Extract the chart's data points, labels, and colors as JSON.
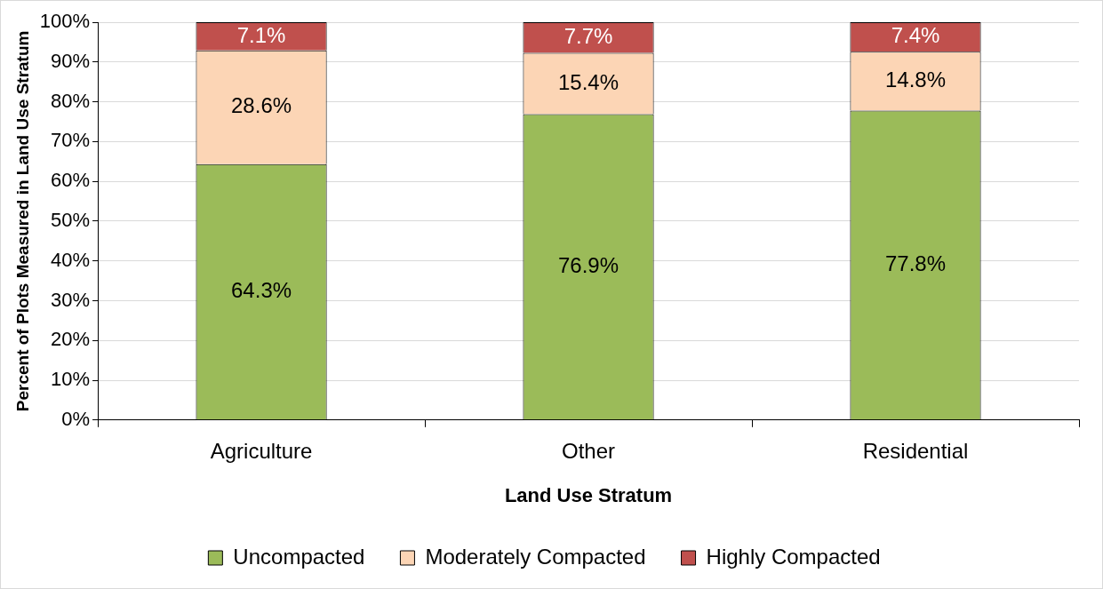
{
  "chart_data": {
    "type": "bar",
    "stacked": true,
    "xlabel": "Land Use Stratum",
    "ylabel": "Percent of Plots Measured in Land Use Stratum",
    "categories": [
      "Agriculture",
      "Other",
      "Residential"
    ],
    "series": [
      {
        "name": "Uncompacted",
        "color": "#9bbb59",
        "values": [
          64.3,
          76.9,
          77.8
        ],
        "value_labels": [
          "64.3%",
          "76.9%",
          "77.8%"
        ]
      },
      {
        "name": "Moderately Compacted",
        "color": "#fcd5b5",
        "values": [
          28.6,
          15.4,
          14.8
        ],
        "value_labels": [
          "28.6%",
          "15.4%",
          "14.8%"
        ]
      },
      {
        "name": "Highly Compacted",
        "color": "#c0504d",
        "values": [
          7.1,
          7.7,
          7.4
        ],
        "value_labels": [
          "7.1%",
          "7.7%",
          "7.4%"
        ]
      }
    ],
    "ylim": [
      0,
      100
    ],
    "yticks": [
      {
        "value": 0,
        "label": "0%"
      },
      {
        "value": 10,
        "label": "10%"
      },
      {
        "value": 20,
        "label": "20%"
      },
      {
        "value": 30,
        "label": "30%"
      },
      {
        "value": 40,
        "label": "40%"
      },
      {
        "value": 50,
        "label": "50%"
      },
      {
        "value": 60,
        "label": "60%"
      },
      {
        "value": 70,
        "label": "70%"
      },
      {
        "value": 80,
        "label": "80%"
      },
      {
        "value": 90,
        "label": "90%"
      },
      {
        "value": 100,
        "label": "100%"
      }
    ],
    "grid": "y",
    "legend": "bottom"
  }
}
